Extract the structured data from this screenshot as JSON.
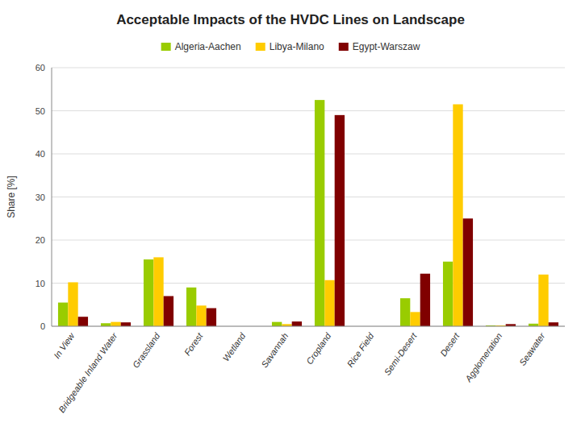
{
  "chart_data": {
    "type": "bar",
    "title": "Acceptable Impacts of the HVDC Lines on Landscape",
    "ylabel": "Share [%]",
    "categories": [
      "In View",
      "Bridgeable Inland Water",
      "Grassland",
      "Forest",
      "Wetland",
      "Savannah",
      "Cropland",
      "Rice Field",
      "Semi-Desert",
      "Desert",
      "Agglomeration",
      "Seawater"
    ],
    "series": [
      {
        "name": "Algeria-Aachen",
        "color": "#99cc00",
        "values": [
          5.5,
          0.7,
          15.5,
          9.0,
          0.0,
          1.0,
          52.5,
          0.0,
          6.5,
          15.0,
          0.2,
          0.6
        ]
      },
      {
        "name": "Libya-Milano",
        "color": "#ffcc00",
        "values": [
          10.2,
          1.0,
          16.0,
          4.8,
          0.0,
          0.5,
          10.7,
          0.0,
          3.3,
          51.5,
          0.2,
          12.0
        ]
      },
      {
        "name": "Egypt-Warszaw",
        "color": "#800000",
        "values": [
          2.2,
          0.9,
          7.0,
          4.2,
          0.0,
          1.1,
          49.0,
          0.0,
          12.2,
          25.0,
          0.5,
          0.9
        ]
      }
    ],
    "ylim": [
      0,
      60
    ],
    "yticks": [
      0,
      10,
      20,
      30,
      40,
      50,
      60
    ],
    "grid": true,
    "legend": "top"
  }
}
